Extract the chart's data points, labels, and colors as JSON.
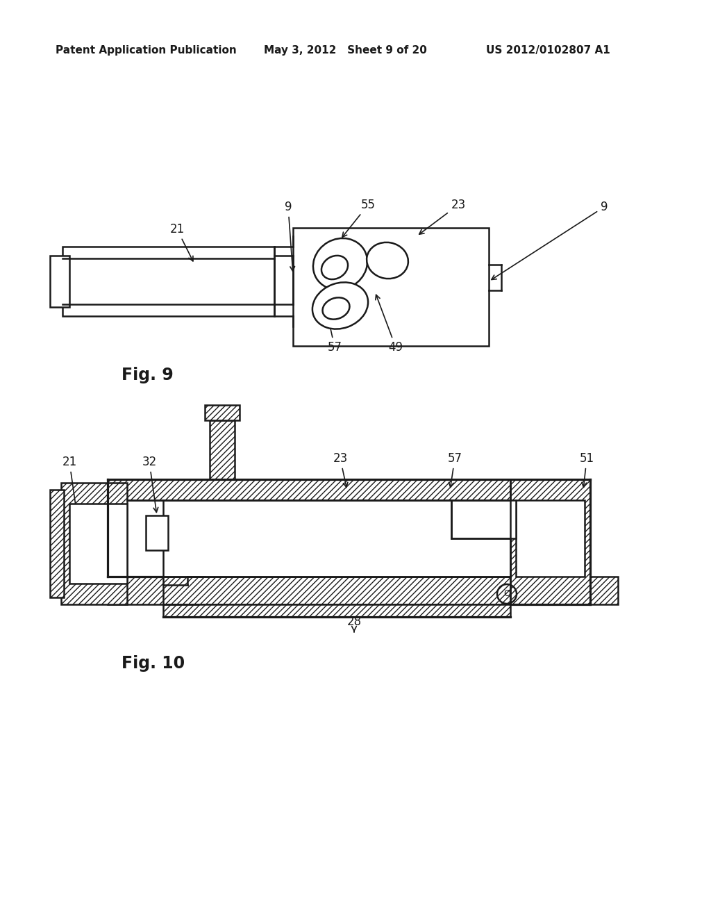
{
  "header_left": "Patent Application Publication",
  "header_mid": "May 3, 2012   Sheet 9 of 20",
  "header_right": "US 2012/0102807 A1",
  "fig9_label": "Fig. 9",
  "fig10_label": "Fig. 10",
  "bg_color": "#ffffff",
  "line_color": "#1a1a1a"
}
